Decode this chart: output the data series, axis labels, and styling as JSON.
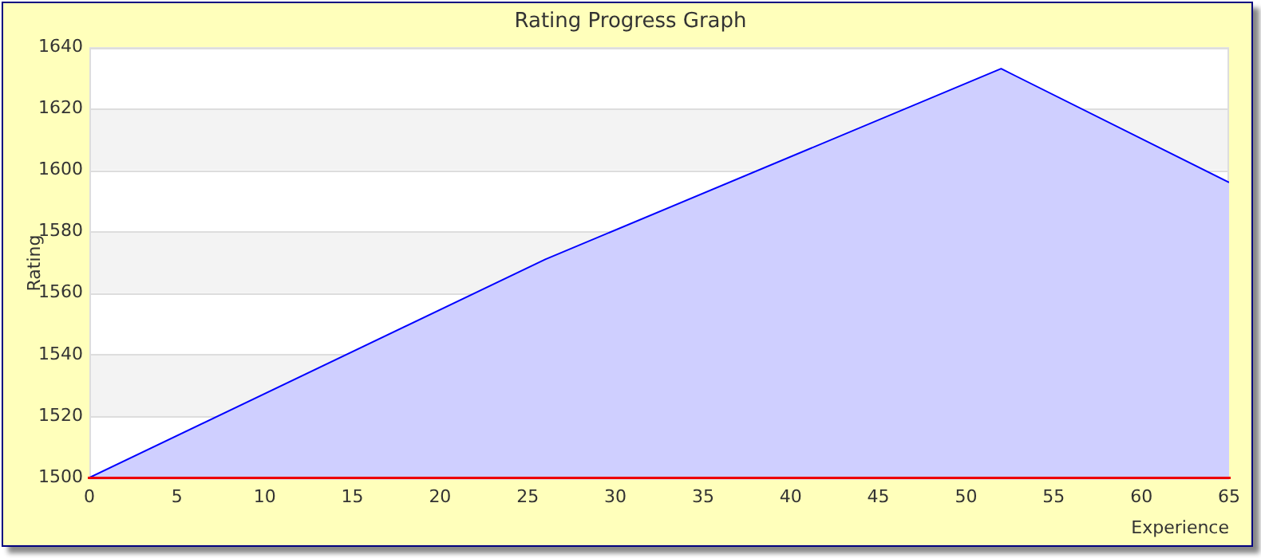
{
  "chart_data": {
    "type": "area",
    "title": "Rating Progress Graph",
    "xlabel": "Experience",
    "ylabel": "Rating",
    "x": [
      0,
      26,
      52,
      65
    ],
    "series": [
      {
        "color": "#0000ff",
        "values": [
          1500,
          1571,
          1633,
          1596
        ]
      }
    ],
    "xlim": [
      0,
      65
    ],
    "xticks": [
      0,
      5,
      10,
      15,
      20,
      25,
      30,
      35,
      40,
      45,
      50,
      55,
      60,
      65
    ],
    "ylim": [
      1500,
      1640
    ],
    "yticks": [
      1500,
      1520,
      1540,
      1560,
      1580,
      1600,
      1620,
      1640
    ],
    "grid": "y",
    "legend": false,
    "marker": "none"
  }
}
